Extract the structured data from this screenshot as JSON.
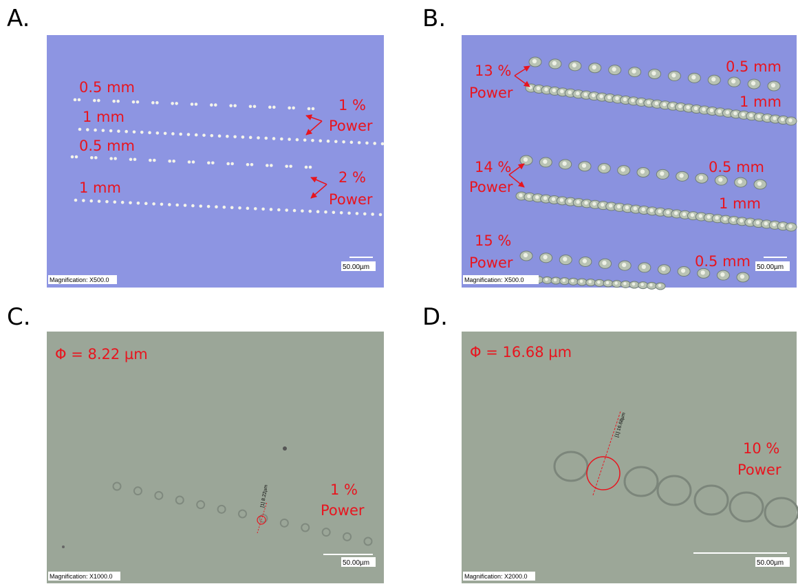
{
  "panels": [
    {
      "letter": "A.",
      "labels": [
        "0.5 mm",
        "1 mm",
        "0.5 mm",
        "1 mm",
        "1 %",
        "Power",
        "2 %",
        "Power"
      ],
      "magnification": "Magnification: X500.0",
      "scale_bar": "50.00µm"
    },
    {
      "letter": "B.",
      "labels": [
        "13 %",
        "Power",
        "0.5 mm",
        "1 mm",
        "14 %",
        "Power",
        "0.5 mm",
        "1 mm",
        "15 %",
        "Power",
        "0.5 mm"
      ],
      "magnification": "Magnification: X500.0",
      "scale_bar": "50.00µm"
    },
    {
      "letter": "C.",
      "labels": [
        "Φ = 8.22 µm",
        "1 %",
        "Power"
      ],
      "measurement": "[1] 8.22µm",
      "magnification": "Magnification: X1000.0",
      "scale_bar": "50.00µm"
    },
    {
      "letter": "D.",
      "labels": [
        "Φ =  16.68 µm",
        "10 %",
        "Power"
      ],
      "measurement": "[1] 16.68µm",
      "magnification": "Magnification: X2000.0",
      "scale_bar": "50.00µm"
    }
  ]
}
